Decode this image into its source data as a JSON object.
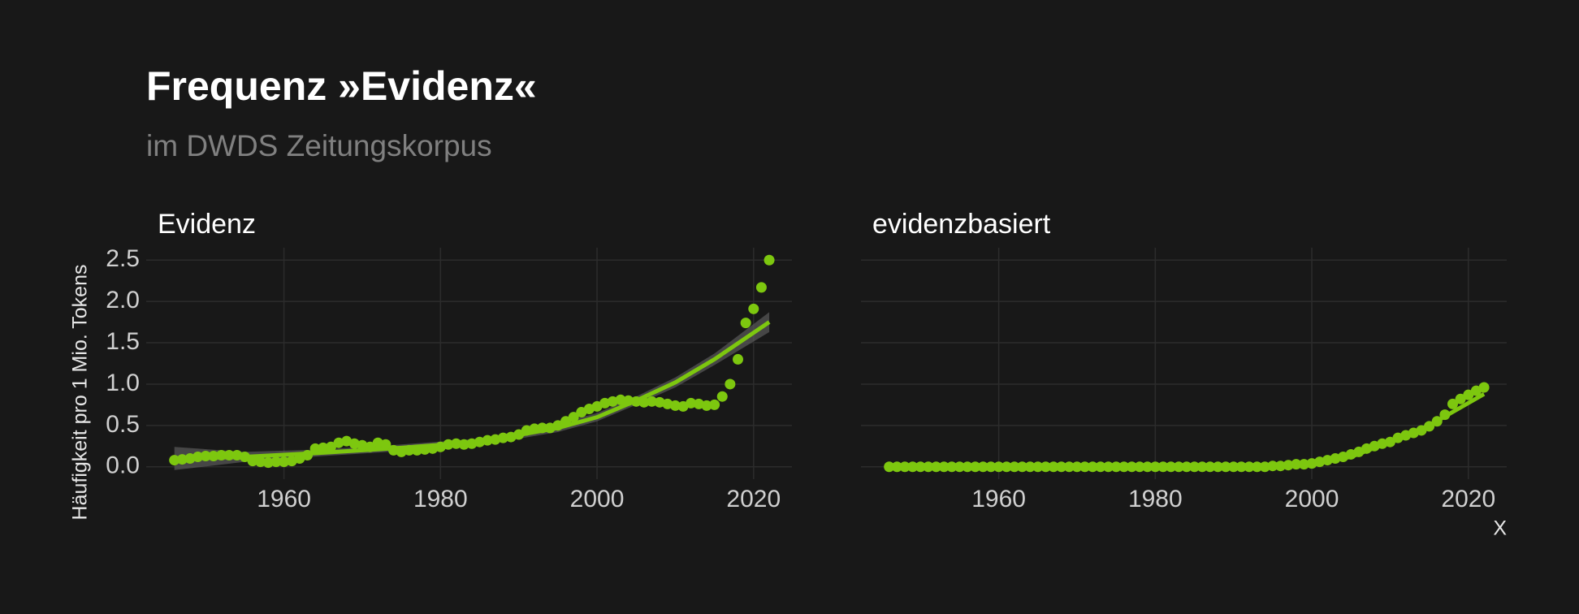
{
  "chart_data": {
    "type": "scatter",
    "title": "Frequenz »Evidenz«",
    "subtitle": "im DWDS Zeitungskorpus",
    "y_label": "Häufigkeit pro 1 Mio. Tokens",
    "x_label": "X",
    "color": "#7dc70f",
    "ribbon_color": "#5a5a5a",
    "grid": true,
    "xlim": [
      1942.4,
      2024.9
    ],
    "ylim": [
      -0.15,
      2.65
    ],
    "xticks": [
      1960,
      1980,
      2000,
      2020
    ],
    "yticks": [
      {
        "value": 0,
        "label": "0.0"
      },
      0.5,
      {
        "value": 1,
        "label": "1.0"
      },
      1.5,
      {
        "value": 2,
        "label": "2.0"
      },
      2.5
    ],
    "x": [
      1946,
      1947,
      1948,
      1949,
      1950,
      1951,
      1952,
      1953,
      1954,
      1955,
      1956,
      1957,
      1958,
      1959,
      1960,
      1961,
      1962,
      1963,
      1964,
      1965,
      1966,
      1967,
      1968,
      1969,
      1970,
      1971,
      1972,
      1973,
      1974,
      1975,
      1976,
      1977,
      1978,
      1979,
      1980,
      1981,
      1982,
      1983,
      1984,
      1985,
      1986,
      1987,
      1988,
      1989,
      1990,
      1991,
      1992,
      1993,
      1994,
      1995,
      1996,
      1997,
      1998,
      1999,
      2000,
      2001,
      2002,
      2003,
      2004,
      2005,
      2006,
      2007,
      2008,
      2009,
      2010,
      2011,
      2012,
      2013,
      2014,
      2015,
      2016,
      2017,
      2018,
      2019,
      2020,
      2021,
      2022
    ],
    "panels": [
      {
        "title": "Evidenz",
        "values": [
          0.08,
          0.09,
          0.1,
          0.12,
          0.13,
          0.13,
          0.14,
          0.14,
          0.14,
          0.12,
          0.07,
          0.06,
          0.05,
          0.06,
          0.06,
          0.07,
          0.1,
          0.14,
          0.22,
          0.23,
          0.24,
          0.29,
          0.31,
          0.28,
          0.26,
          0.24,
          0.29,
          0.27,
          0.2,
          0.18,
          0.2,
          0.2,
          0.21,
          0.22,
          0.24,
          0.27,
          0.28,
          0.27,
          0.28,
          0.3,
          0.32,
          0.33,
          0.35,
          0.36,
          0.39,
          0.44,
          0.46,
          0.47,
          0.47,
          0.5,
          0.55,
          0.6,
          0.66,
          0.7,
          0.73,
          0.77,
          0.79,
          0.81,
          0.8,
          0.79,
          0.78,
          0.79,
          0.78,
          0.76,
          0.74,
          0.73,
          0.77,
          0.76,
          0.74,
          0.75,
          0.85,
          1.0,
          1.3,
          1.74,
          1.91,
          2.17,
          2.5
        ],
        "trend": {
          "x": [
            1946,
            1955,
            1965,
            1975,
            1985,
            1995,
            2000,
            2005,
            2010,
            2015,
            2022
          ],
          "values": [
            0.1,
            0.12,
            0.17,
            0.23,
            0.3,
            0.47,
            0.6,
            0.8,
            1.02,
            1.3,
            1.75
          ],
          "lower": [
            -0.04,
            0.06,
            0.13,
            0.19,
            0.26,
            0.42,
            0.55,
            0.75,
            0.96,
            1.23,
            1.63
          ],
          "upper": [
            0.24,
            0.18,
            0.21,
            0.27,
            0.34,
            0.52,
            0.65,
            0.85,
            1.08,
            1.37,
            1.87
          ]
        }
      },
      {
        "title": "evidenzbasiert",
        "values": [
          0,
          0,
          0,
          0,
          0,
          0,
          0,
          0,
          0,
          0,
          0,
          0,
          0,
          0,
          0,
          0,
          0,
          0,
          0,
          0,
          0,
          0,
          0,
          0,
          0,
          0,
          0,
          0,
          0,
          0,
          0,
          0,
          0,
          0,
          0,
          0,
          0,
          0,
          0,
          0,
          0,
          0,
          0,
          0,
          0,
          0,
          0,
          0,
          0,
          0.01,
          0.01,
          0.02,
          0.03,
          0.03,
          0.04,
          0.06,
          0.08,
          0.1,
          0.12,
          0.15,
          0.18,
          0.22,
          0.25,
          0.28,
          0.3,
          0.35,
          0.38,
          0.41,
          0.44,
          0.49,
          0.55,
          0.63,
          0.76,
          0.82,
          0.87,
          0.92,
          0.96
        ],
        "trend": {
          "x": [
            1946,
            1990,
            2000,
            2005,
            2010,
            2015,
            2022
          ],
          "values": [
            0,
            0,
            0.04,
            0.12,
            0.3,
            0.5,
            0.88
          ],
          "lower": [
            -0.01,
            -0.01,
            0.03,
            0.11,
            0.29,
            0.49,
            0.86
          ],
          "upper": [
            0.01,
            0.01,
            0.05,
            0.13,
            0.31,
            0.51,
            0.9
          ]
        }
      }
    ]
  }
}
